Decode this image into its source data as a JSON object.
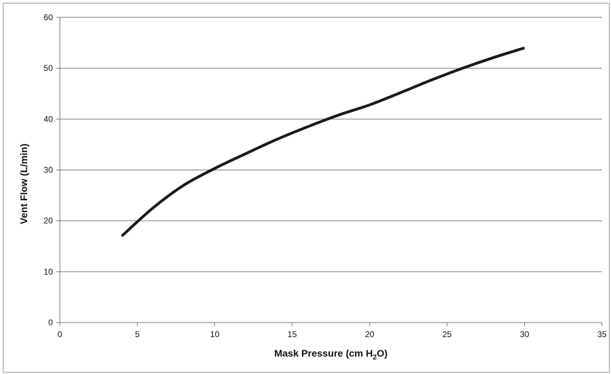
{
  "chart_data": {
    "type": "line",
    "title": "",
    "xlabel": "Mask Pressure (cm H2O)",
    "xlabel_parts": {
      "before": "Mask Pressure (cm H",
      "subscript": "2",
      "after": "O)"
    },
    "ylabel": "Vent Flow (L/min)",
    "xlim": [
      0,
      35
    ],
    "ylim": [
      0,
      60
    ],
    "x_ticks": [
      0,
      5,
      10,
      15,
      20,
      25,
      30,
      35
    ],
    "y_ticks": [
      0,
      10,
      20,
      30,
      40,
      50,
      60
    ],
    "grid": {
      "horizontal": true,
      "vertical": false
    },
    "legend": "none",
    "series": [
      {
        "color": "#1a1a1a",
        "x": [
          4,
          6,
          8,
          10,
          12,
          14,
          16,
          18,
          20,
          22,
          24,
          26,
          28,
          30
        ],
        "y": [
          17,
          22.5,
          27,
          30.3,
          33.2,
          36,
          38.5,
          40.8,
          42.8,
          45.2,
          47.7,
          50,
          52.1,
          54
        ]
      }
    ]
  }
}
